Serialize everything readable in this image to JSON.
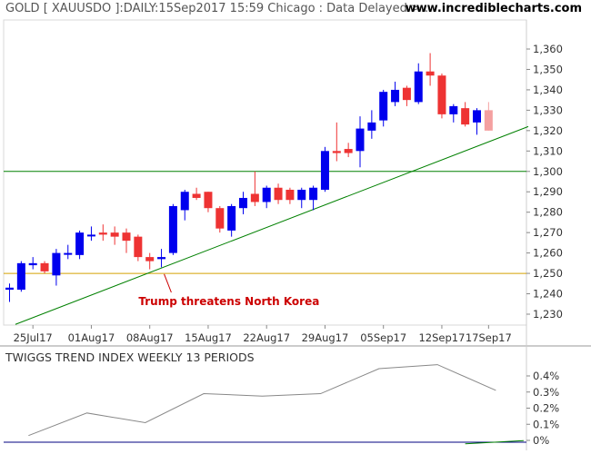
{
  "header": {
    "title": "GOLD [ XAUUSDO ]:DAILY:15Sep2017 15:59 Chicago : Data Delayed >...",
    "website": "www.incrediblecharts.com"
  },
  "indicator": {
    "title": "TWIGGS TREND INDEX WEEKLY 13 PERIODS"
  },
  "colors": {
    "up": "#0000ee",
    "down": "#ee3333",
    "last_down": "#f4a0a0",
    "support_line": "#008000",
    "resistance_line": "#008000",
    "orange_line": "#d4a000",
    "annotation": "#cc0000",
    "indicator_line": "#888888",
    "zero_line": "#000080"
  },
  "chart_data": [
    {
      "type": "candlestick",
      "title": "GOLD [ XAUUSDO ]:DAILY:15Sep2017 15:59 Chicago : Data Delayed >...",
      "ylim": [
        1222,
        1368
      ],
      "y_ticks": [
        "1,230",
        "1,240",
        "1,250",
        "1,260",
        "1,270",
        "1,280",
        "1,290",
        "1,300",
        "1,310",
        "1,320",
        "1,330",
        "1,340",
        "1,350",
        "1,360"
      ],
      "y_tick_values": [
        1230,
        1240,
        1250,
        1260,
        1270,
        1280,
        1290,
        1300,
        1310,
        1320,
        1330,
        1340,
        1350,
        1360
      ],
      "x_ticks": [
        {
          "label": "25Jul17",
          "index": 2
        },
        {
          "label": "01Aug17",
          "index": 7
        },
        {
          "label": "08Aug17",
          "index": 12
        },
        {
          "label": "15Aug17",
          "index": 17
        },
        {
          "label": "22Aug17",
          "index": 22
        },
        {
          "label": "29Aug17",
          "index": 27
        },
        {
          "label": "05Sep17",
          "index": 32
        },
        {
          "label": "12Sep17",
          "index": 37
        },
        {
          "label": "17Sep17",
          "index": 41
        }
      ],
      "candles": [
        {
          "o": 1242,
          "h": 1245,
          "l": 1236,
          "c": 1243
        },
        {
          "o": 1242,
          "h": 1256,
          "l": 1241,
          "c": 1255
        },
        {
          "o": 1254,
          "h": 1258,
          "l": 1252,
          "c": 1255
        },
        {
          "o": 1255,
          "h": 1256,
          "l": 1250,
          "c": 1251
        },
        {
          "o": 1249,
          "h": 1262,
          "l": 1244,
          "c": 1260
        },
        {
          "o": 1260,
          "h": 1264,
          "l": 1257,
          "c": 1260
        },
        {
          "o": 1259,
          "h": 1271,
          "l": 1257,
          "c": 1270
        },
        {
          "o": 1269,
          "h": 1273,
          "l": 1266,
          "c": 1269
        },
        {
          "o": 1270,
          "h": 1274,
          "l": 1266,
          "c": 1269
        },
        {
          "o": 1270,
          "h": 1273,
          "l": 1264,
          "c": 1268
        },
        {
          "o": 1270,
          "h": 1272,
          "l": 1260,
          "c": 1266
        },
        {
          "o": 1268,
          "h": 1269,
          "l": 1256,
          "c": 1258
        },
        {
          "o": 1258,
          "h": 1260,
          "l": 1252,
          "c": 1256
        },
        {
          "o": 1257,
          "h": 1262,
          "l": 1253,
          "c": 1258
        },
        {
          "o": 1260,
          "h": 1284,
          "l": 1259,
          "c": 1283
        },
        {
          "o": 1281,
          "h": 1291,
          "l": 1276,
          "c": 1290
        },
        {
          "o": 1289,
          "h": 1292,
          "l": 1286,
          "c": 1287
        },
        {
          "o": 1290,
          "h": 1290,
          "l": 1280,
          "c": 1282
        },
        {
          "o": 1282,
          "h": 1283,
          "l": 1270,
          "c": 1272
        },
        {
          "o": 1271,
          "h": 1284,
          "l": 1268,
          "c": 1283
        },
        {
          "o": 1282,
          "h": 1290,
          "l": 1279,
          "c": 1287
        },
        {
          "o": 1289,
          "h": 1300,
          "l": 1283,
          "c": 1285
        },
        {
          "o": 1285,
          "h": 1293,
          "l": 1282,
          "c": 1292
        },
        {
          "o": 1292,
          "h": 1294,
          "l": 1284,
          "c": 1286
        },
        {
          "o": 1291,
          "h": 1292,
          "l": 1284,
          "c": 1286
        },
        {
          "o": 1286,
          "h": 1292,
          "l": 1282,
          "c": 1291
        },
        {
          "o": 1286,
          "h": 1293,
          "l": 1281,
          "c": 1292
        },
        {
          "o": 1291,
          "h": 1312,
          "l": 1290,
          "c": 1310
        },
        {
          "o": 1310,
          "h": 1324,
          "l": 1305,
          "c": 1309
        },
        {
          "o": 1311,
          "h": 1314,
          "l": 1307,
          "c": 1309
        },
        {
          "o": 1310,
          "h": 1327,
          "l": 1302,
          "c": 1321
        },
        {
          "o": 1320,
          "h": 1330,
          "l": 1316,
          "c": 1324
        },
        {
          "o": 1325,
          "h": 1340,
          "l": 1322,
          "c": 1339
        },
        {
          "o": 1334,
          "h": 1344,
          "l": 1332,
          "c": 1340
        },
        {
          "o": 1341,
          "h": 1342,
          "l": 1332,
          "c": 1335
        },
        {
          "o": 1334,
          "h": 1353,
          "l": 1333,
          "c": 1349
        },
        {
          "o": 1349,
          "h": 1358,
          "l": 1342,
          "c": 1347
        },
        {
          "o": 1347,
          "h": 1348,
          "l": 1326,
          "c": 1328
        },
        {
          "o": 1328,
          "h": 1333,
          "l": 1324,
          "c": 1332
        },
        {
          "o": 1331,
          "h": 1334,
          "l": 1322,
          "c": 1323
        },
        {
          "o": 1324,
          "h": 1331,
          "l": 1318,
          "c": 1330
        },
        {
          "o": 1330,
          "h": 1334,
          "l": 1320,
          "c": 1320
        }
      ],
      "horizontal_lines": [
        {
          "value": 1300,
          "color_key": "resistance_line"
        },
        {
          "value": 1250,
          "color_key": "orange_line"
        }
      ],
      "trendline": {
        "from": {
          "index": 0.5,
          "value": 1225
        },
        "to": {
          "index": 45,
          "value": 1322
        }
      },
      "annotation": {
        "text": "Trump threatens North Korea",
        "target": {
          "index": 13,
          "value": 1251
        },
        "label_anchor": {
          "index": 14,
          "value": 1238
        }
      }
    },
    {
      "type": "line",
      "title": "TWIGGS TREND INDEX WEEKLY 13 PERIODS",
      "ylim": [
        -0.02,
        0.5
      ],
      "y_ticks": [
        "0%",
        "0.1%",
        "0.2%",
        "0.3%",
        "0.4%"
      ],
      "y_tick_values": [
        0,
        0.1,
        0.2,
        0.3,
        0.4
      ],
      "series": [
        {
          "index": [
            1,
            6,
            11,
            16,
            21,
            26,
            31,
            36,
            41
          ],
          "values": [
            0.03,
            0.17,
            0.11,
            0.29,
            0.275,
            0.29,
            0.445,
            0.47,
            0.31
          ]
        }
      ],
      "zero_line": 0,
      "recent_series": {
        "index": [
          39,
          44
        ],
        "values": [
          -0.01,
          0.01
        ]
      }
    }
  ]
}
